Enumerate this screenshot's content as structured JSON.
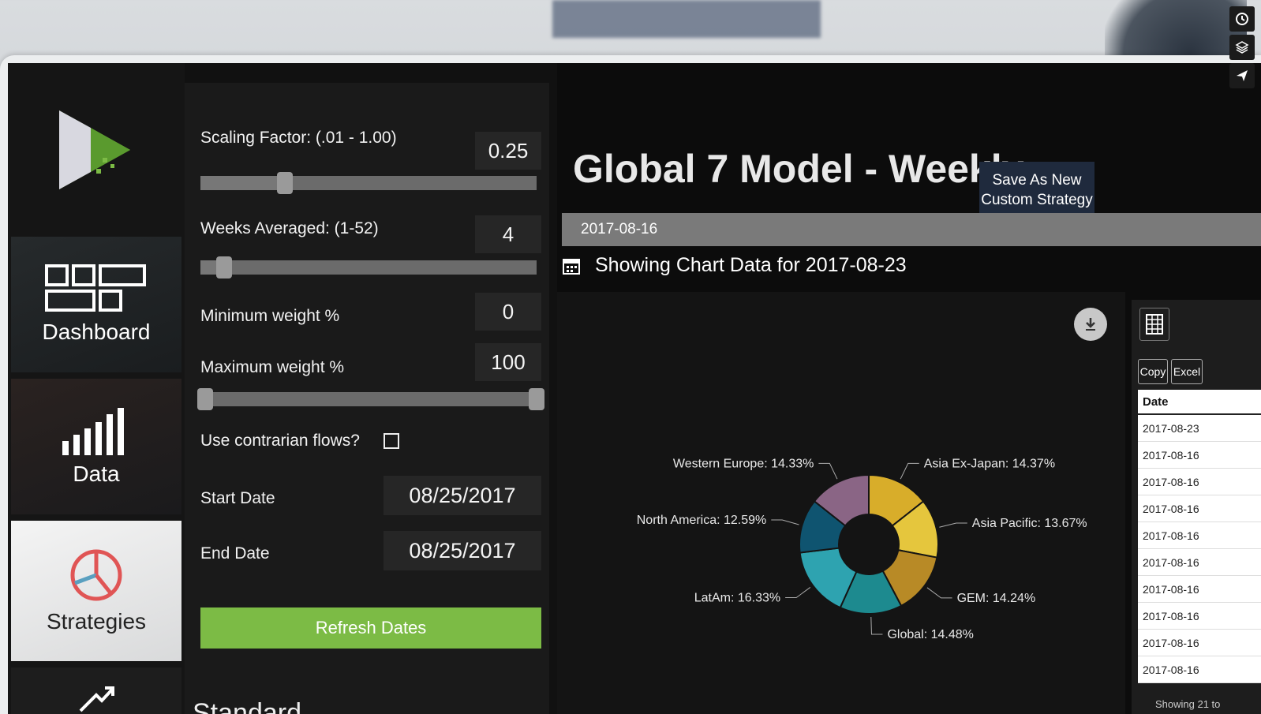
{
  "controls": {
    "scaling_label": "Scaling Factor: (.01 - 1.00)",
    "scaling_value": "0.25",
    "scaling_fraction": 0.25,
    "weeks_label": "Weeks Averaged: (1-52)",
    "weeks_value": "4",
    "min_weight_label": "Minimum weight %",
    "min_weight_value": "0",
    "max_weight_label": "Maximum weight %",
    "max_weight_value": "100",
    "contrarian_label": "Use contrarian flows?",
    "contrarian_checked": false,
    "start_date_label": "Start Date",
    "start_date_value": "08/25/2017",
    "end_date_label": "End Date",
    "end_date_value": "08/25/2017",
    "refresh_label": "Refresh Dates",
    "standard_label": "Standard"
  },
  "nav": {
    "dashboard": "Dashboard",
    "data": "Data",
    "strategies": "Strategies"
  },
  "main": {
    "title": "Global 7 Model - Weekly",
    "save_label_line1": "Save As New",
    "save_label_line2": "Custom Strategy",
    "selected_date": "2017-08-16",
    "chart_heading": "Showing Chart Data for 2017-08-23"
  },
  "chart_data": {
    "type": "pie",
    "donut": true,
    "slices": [
      {
        "label": "Asia Ex-Japan: 14.37%",
        "name": "Asia Ex-Japan",
        "value": 14.37,
        "color": "#d8ad2a"
      },
      {
        "label": "Asia Pacific: 13.67%",
        "name": "Asia Pacific",
        "value": 13.67,
        "color": "#e5c63d"
      },
      {
        "label": "GEM: 14.24%",
        "name": "GEM",
        "value": 14.24,
        "color": "#b88a26"
      },
      {
        "label": "Global: 14.48%",
        "name": "Global",
        "value": 14.48,
        "color": "#1d8a8f"
      },
      {
        "label": "LatAm: 16.33%",
        "name": "LatAm",
        "value": 16.33,
        "color": "#2ea3b0"
      },
      {
        "label": "North America: 12.59%",
        "name": "North America",
        "value": 12.59,
        "color": "#0f5470"
      },
      {
        "label": "Western Europe: 14.33%",
        "name": "Western Europe",
        "value": 14.33,
        "color": "#8a6585"
      }
    ]
  },
  "table": {
    "copy_label": "Copy",
    "excel_label": "Excel",
    "header": "Date",
    "rows": [
      "2017-08-23",
      "2017-08-16",
      "2017-08-16",
      "2017-08-16",
      "2017-08-16",
      "2017-08-16",
      "2017-08-16",
      "2017-08-16",
      "2017-08-16",
      "2017-08-16"
    ],
    "footer": "Showing 21 to"
  },
  "colors": {
    "accent_green": "#7cbb45",
    "button_navy": "#1f2a3d"
  }
}
